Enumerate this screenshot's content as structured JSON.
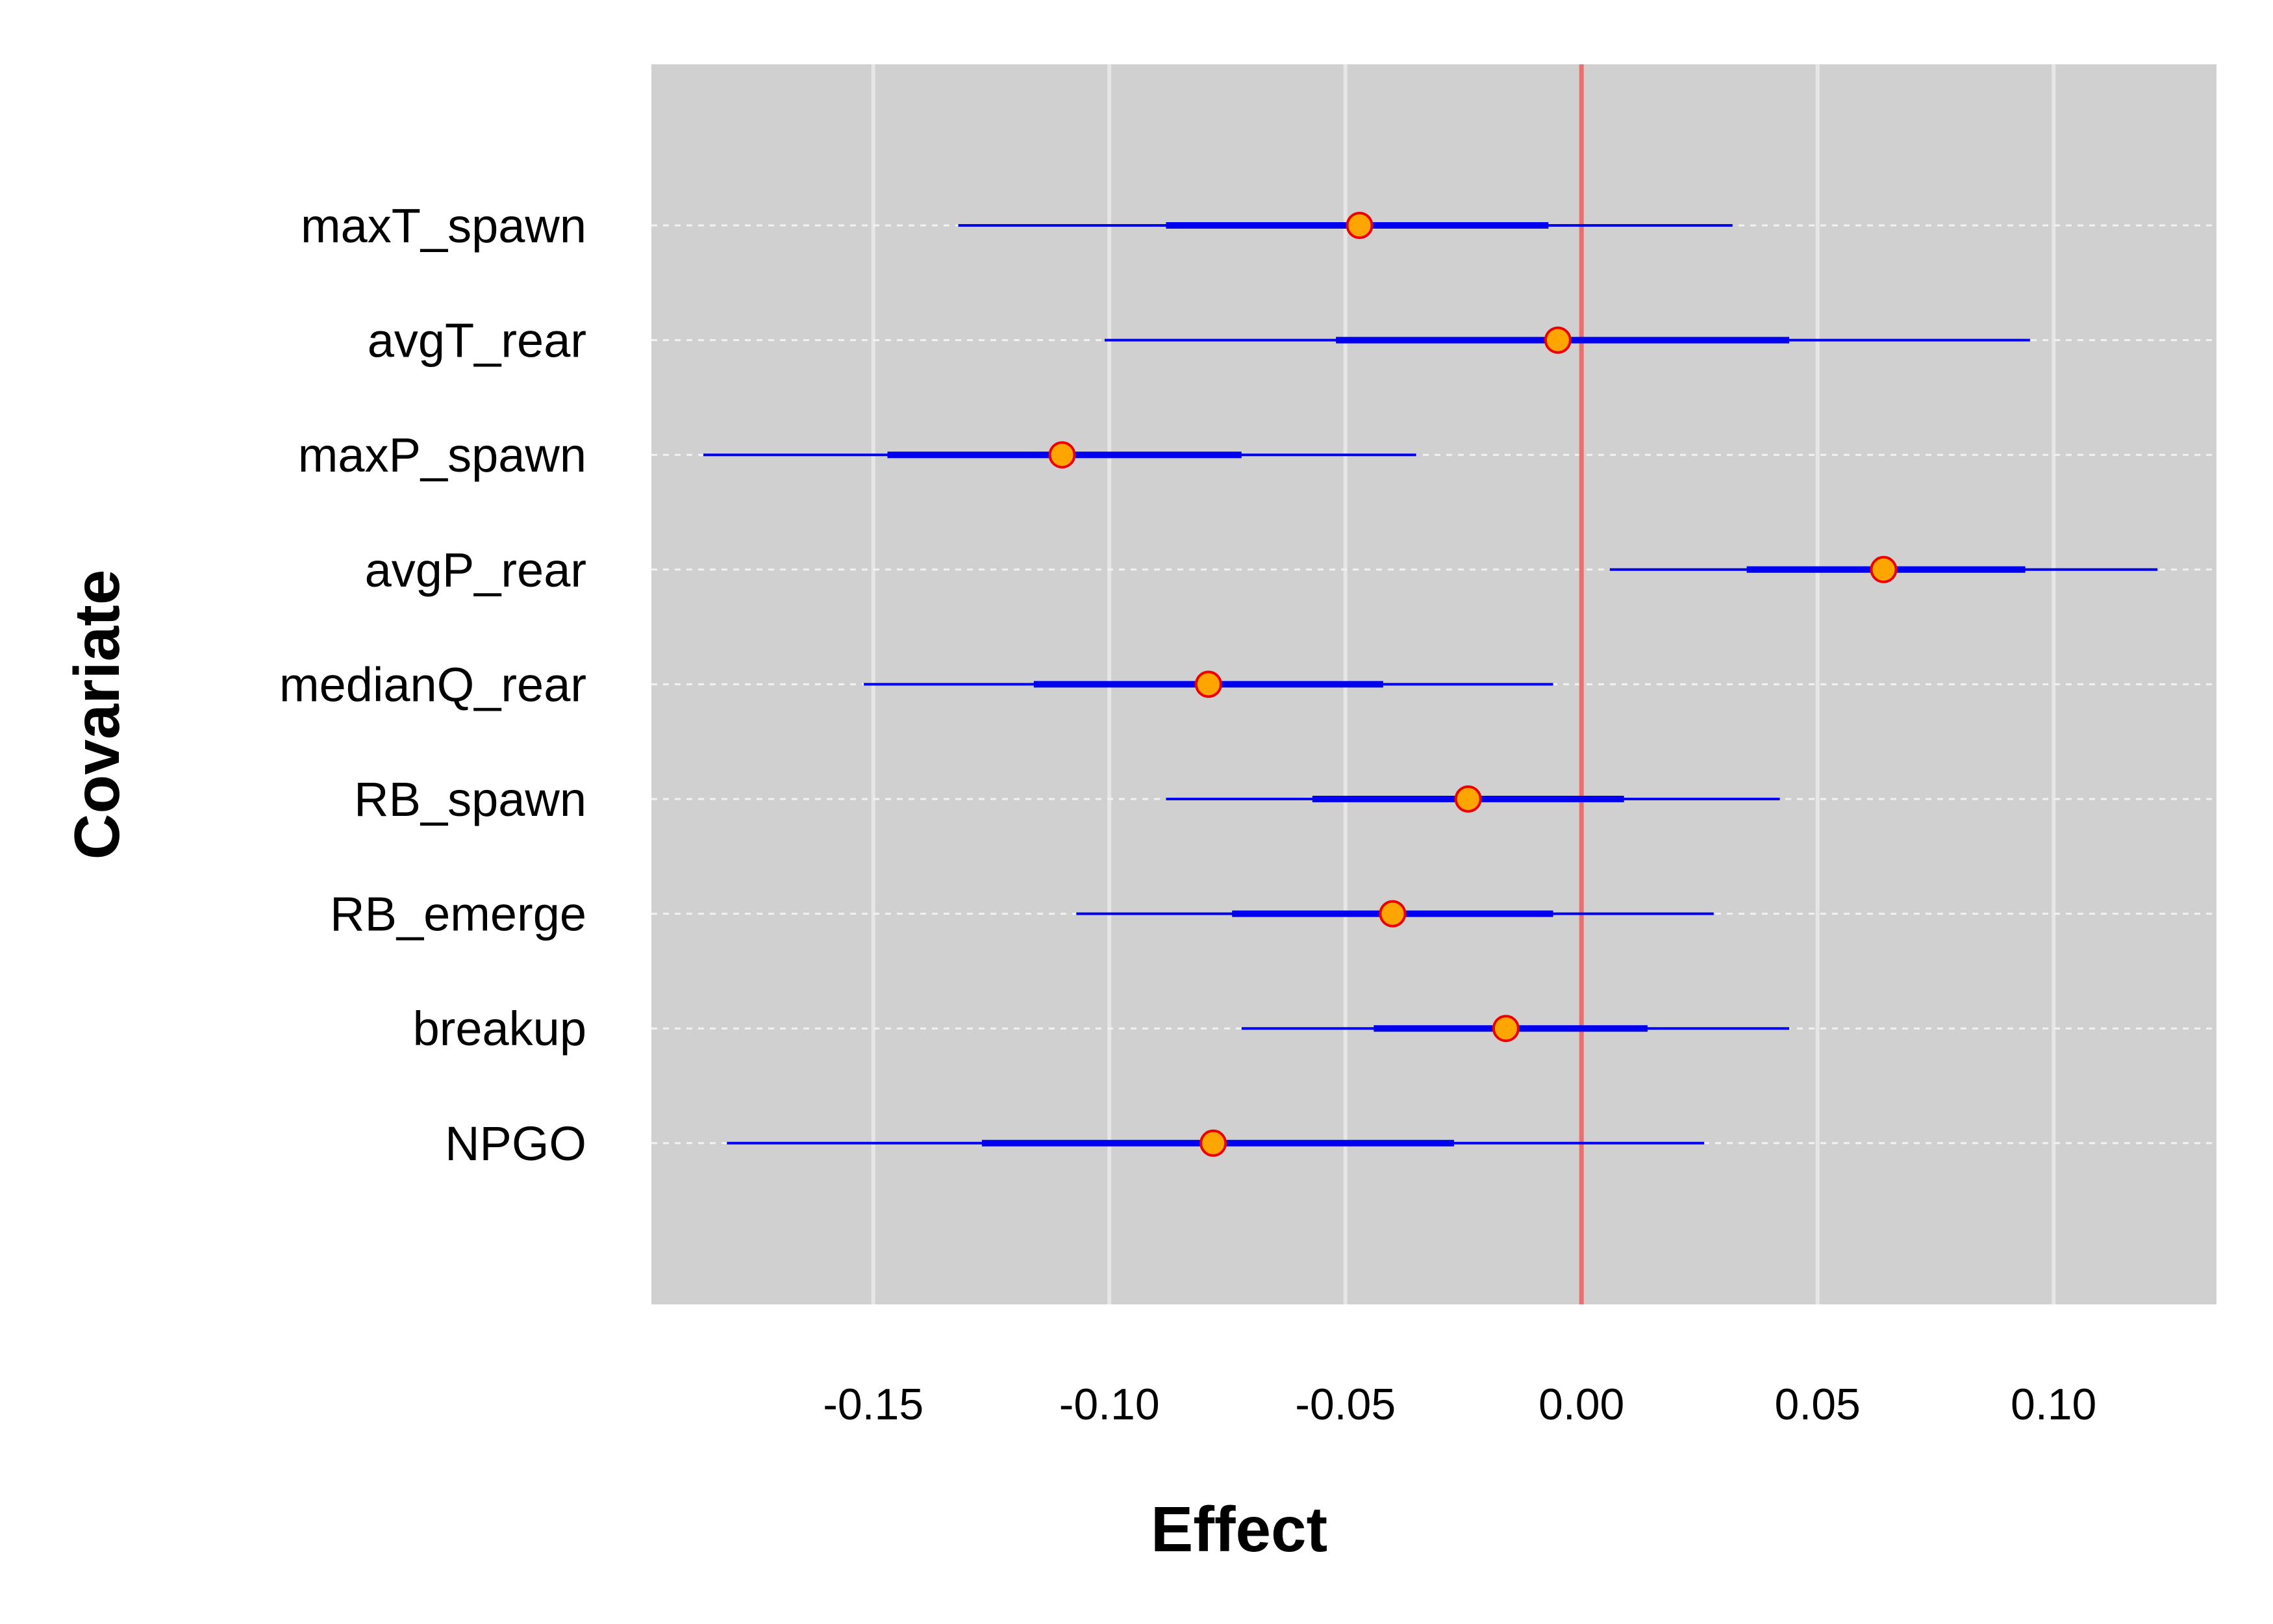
{
  "chart_data": {
    "type": "forest",
    "xlabel": "Effect",
    "ylabel": "Covariate",
    "xlim": [
      -0.197,
      0.1345
    ],
    "xticks": [
      -0.15,
      -0.1,
      -0.05,
      0.0,
      0.05,
      0.1
    ],
    "xtick_labels": [
      "-0.15",
      "-0.10",
      "-0.05",
      "0.00",
      "0.05",
      "0.10"
    ],
    "reference_line": 0.0,
    "grid": true,
    "categories": [
      "maxT_spawn",
      "avgT_rear",
      "maxP_spawn",
      "avgP_rear",
      "medianQ_rear",
      "RB_spawn",
      "RB_emerge",
      "breakup",
      "NPGO"
    ],
    "estimates": [
      -0.047,
      -0.005,
      -0.11,
      0.064,
      -0.079,
      -0.024,
      -0.04,
      -0.016,
      -0.078
    ],
    "inner_interval": [
      [
        -0.088,
        -0.007
      ],
      [
        -0.052,
        0.044
      ],
      [
        -0.147,
        -0.072
      ],
      [
        0.035,
        0.094
      ],
      [
        -0.116,
        -0.042
      ],
      [
        -0.057,
        0.009
      ],
      [
        -0.074,
        -0.006
      ],
      [
        -0.044,
        0.014
      ],
      [
        -0.127,
        -0.027
      ]
    ],
    "outer_interval": [
      [
        -0.132,
        0.032
      ],
      [
        -0.101,
        0.095
      ],
      [
        -0.186,
        -0.035
      ],
      [
        0.006,
        0.122
      ],
      [
        -0.152,
        -0.006
      ],
      [
        -0.088,
        0.042
      ],
      [
        -0.107,
        0.028
      ],
      [
        -0.072,
        0.044
      ],
      [
        -0.181,
        0.026
      ]
    ],
    "colors": {
      "panel": "#d0d0d0",
      "grid": "#e6e6e6",
      "interval": "#0000ee",
      "reference": "#e87070",
      "point_fill": "#ffa500",
      "point_stroke": "#ee0000"
    }
  }
}
